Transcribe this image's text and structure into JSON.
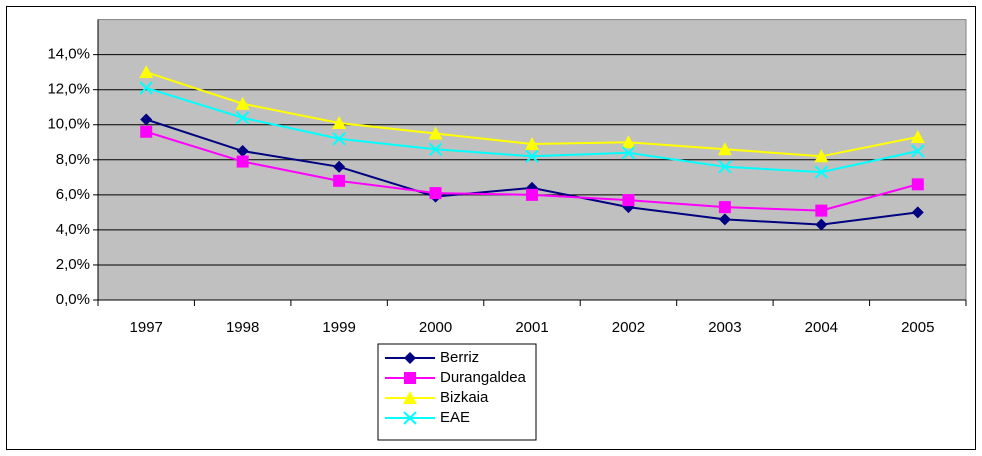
{
  "chart_data": {
    "type": "line",
    "categories": [
      "1997",
      "1998",
      "1999",
      "2000",
      "2001",
      "2002",
      "2003",
      "2004",
      "2005"
    ],
    "series": [
      {
        "name": "Berriz",
        "color": "#000080",
        "marker": "diamond",
        "values": [
          10.3,
          8.5,
          7.6,
          5.9,
          6.4,
          5.3,
          4.6,
          4.3,
          5.0
        ]
      },
      {
        "name": "Durangaldea",
        "color": "#ff00ff",
        "marker": "square",
        "values": [
          9.6,
          7.9,
          6.8,
          6.1,
          6.0,
          5.7,
          5.3,
          5.1,
          6.6
        ]
      },
      {
        "name": "Bizkaia",
        "color": "#ffff00",
        "marker": "triangle",
        "values": [
          13.0,
          11.2,
          10.1,
          9.5,
          8.9,
          9.0,
          8.6,
          8.2,
          9.3
        ]
      },
      {
        "name": "EAE",
        "color": "#00ffff",
        "marker": "x",
        "values": [
          12.1,
          10.4,
          9.2,
          8.6,
          8.2,
          8.4,
          7.6,
          7.3,
          8.5
        ]
      }
    ],
    "ylim": [
      0,
      16
    ],
    "yticks": [
      {
        "value": 0,
        "label": "0,0%"
      },
      {
        "value": 2,
        "label": "2,0%"
      },
      {
        "value": 4,
        "label": "4,0%"
      },
      {
        "value": 6,
        "label": "6,0%"
      },
      {
        "value": 8,
        "label": "8,0%"
      },
      {
        "value": 10,
        "label": "10,0%"
      },
      {
        "value": 12,
        "label": "12,0%"
      },
      {
        "value": 14,
        "label": "14,0%"
      }
    ],
    "grid": true,
    "plot_background": "#c0c0c0",
    "legend": "bottom"
  }
}
